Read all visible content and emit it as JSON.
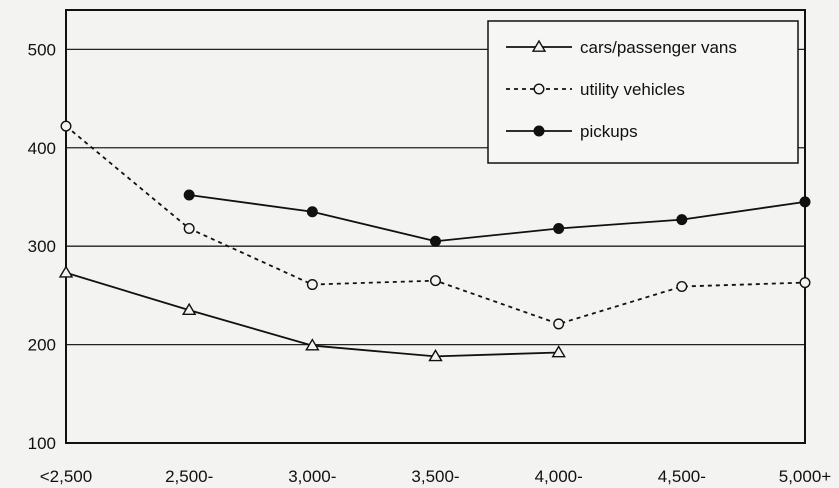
{
  "chart_data": {
    "type": "line",
    "categories": [
      "<2,500",
      "2,500-",
      "3,000-",
      "3,500-",
      "4,000-",
      "4,500-",
      "5,000+"
    ],
    "ylim": [
      100,
      540
    ],
    "yticks": [
      100,
      200,
      300,
      400,
      500
    ],
    "ytick_labels": [
      "100",
      "200",
      "300",
      "400",
      "500"
    ],
    "grid": true,
    "legend_position": "top-right",
    "series": [
      {
        "name": "cars/passenger vans",
        "marker": "triangle-open",
        "line_style": "solid",
        "values": [
          273,
          235,
          199,
          188,
          192,
          null,
          null
        ]
      },
      {
        "name": "utility vehicles",
        "marker": "circle-open",
        "line_style": "dotted",
        "values": [
          422,
          318,
          261,
          265,
          221,
          259,
          263
        ]
      },
      {
        "name": "pickups",
        "marker": "circle-filled",
        "line_style": "solid",
        "values": [
          null,
          352,
          335,
          305,
          318,
          327,
          345
        ]
      }
    ]
  }
}
